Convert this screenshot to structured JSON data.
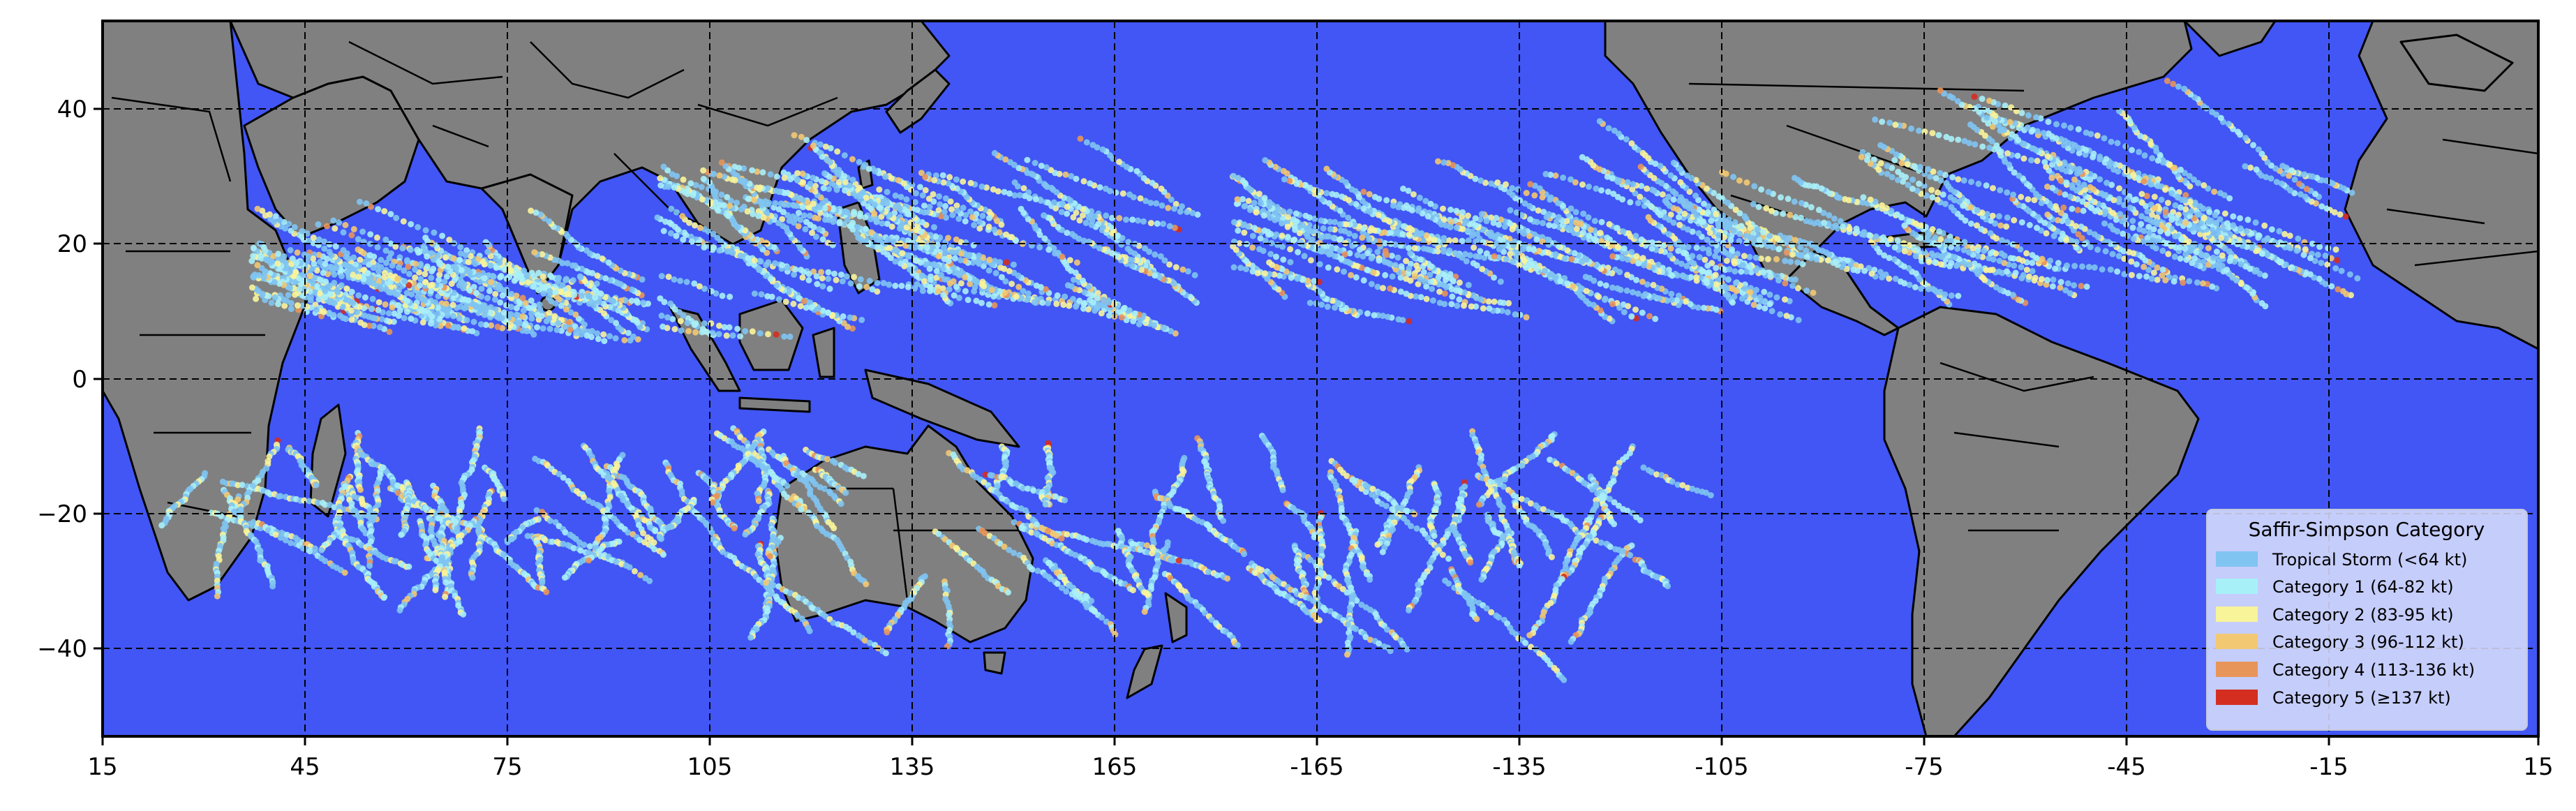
{
  "chart_data": {
    "type": "scatter",
    "subtype": "tropical-cyclone-track-map",
    "title": "",
    "xlabel": "",
    "ylabel": "",
    "x_ticks": [
      "15",
      "45",
      "75",
      "105",
      "135",
      "165",
      "-165",
      "-135",
      "-105",
      "-75",
      "-45",
      "-15",
      "15"
    ],
    "y_ticks": [
      "40",
      "20",
      "0",
      "−20",
      "−40"
    ],
    "x_range_longitude_east_0_360": [
      15,
      375
    ],
    "y_range_latitude": [
      -53,
      53
    ],
    "grid": true,
    "grid_style": "dashed",
    "legend_position": "bottom-right",
    "colors": {
      "ocean": "#4156f5",
      "land": "#808080",
      "border": "#000000"
    },
    "legend": {
      "title": "Saffir-Simpson Category",
      "entries": [
        {
          "label": "Tropical Storm (<64 kt)",
          "color": "#80c4f2"
        },
        {
          "label": "Category 1 (64-82 kt)",
          "color": "#a8f0f8"
        },
        {
          "label": "Category 2 (83-95 kt)",
          "color": "#f8f49a"
        },
        {
          "label": "Category 3 (96-112 kt)",
          "color": "#f2c872"
        },
        {
          "label": "Category 4 (113-136 kt)",
          "color": "#e8955a"
        },
        {
          "label": "Category 5 (≥137 kt)",
          "color": "#d42e20"
        }
      ]
    },
    "track_series": [
      {
        "basin": "western-pacific",
        "approx_lon": [
          105,
          180
        ],
        "approx_lat": [
          5,
          45
        ],
        "max_category": "Category 5"
      },
      {
        "basin": "south-indian",
        "approx_lon": [
          30,
          120
        ],
        "approx_lat": [
          -40,
          -5
        ],
        "max_category": "Category 5"
      },
      {
        "basin": "australia-south-pacific",
        "approx_lon": [
          110,
          245
        ],
        "approx_lat": [
          -50,
          -5
        ],
        "max_category": "Category 5"
      },
      {
        "basin": "eastern-pacific",
        "approx_lon": [
          190,
          270
        ],
        "approx_lat": [
          8,
          35
        ],
        "max_category": "Category 5"
      },
      {
        "basin": "north-atlantic",
        "approx_lon": [
          260,
          350
        ],
        "approx_lat": [
          10,
          50
        ],
        "max_category": "Category 5"
      },
      {
        "basin": "north-indian",
        "approx_lon": [
          45,
          100
        ],
        "approx_lat": [
          5,
          25
        ],
        "max_category": "Category 5"
      }
    ]
  }
}
